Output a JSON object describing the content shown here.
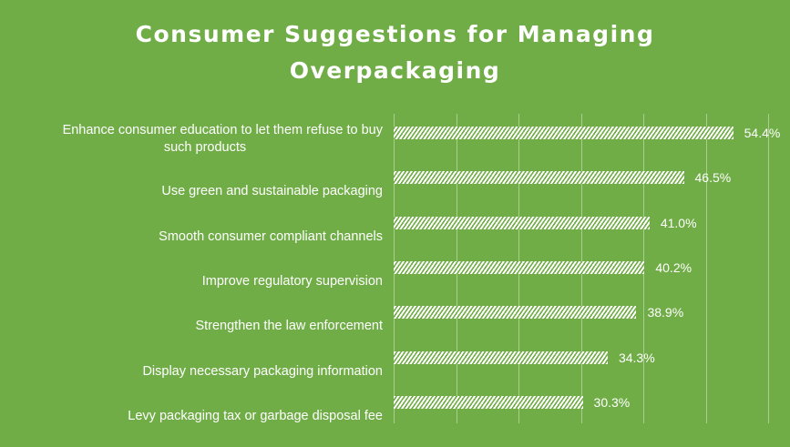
{
  "chart_data": {
    "type": "bar",
    "orientation": "horizontal",
    "title": "Consumer Suggestions for Managing Overpackaging",
    "title_lines": [
      "Consumer Suggestions for Managing",
      "Overpackaging"
    ],
    "categories": [
      "Enhance consumer education to let them refuse to buy such products",
      "Use green and sustainable packaging",
      "Smooth consumer compliant channels",
      "Improve regulatory supervision",
      "Strengthen the law enforcement",
      "Display necessary packaging information",
      "Levy packaging tax or garbage disposal fee"
    ],
    "values": [
      54.4,
      46.5,
      41.0,
      40.2,
      38.9,
      34.3,
      30.3
    ],
    "labels": [
      "54.4%",
      "46.5%",
      "41.0%",
      "40.2%",
      "38.9%",
      "34.3%",
      "30.3%"
    ],
    "xlabel": "",
    "ylabel": "",
    "xlim": [
      0,
      60
    ],
    "grid": true,
    "legend": "none",
    "colors": {
      "background": "#70ad47",
      "bar": "#ffffff",
      "text": "#ffffff"
    }
  }
}
